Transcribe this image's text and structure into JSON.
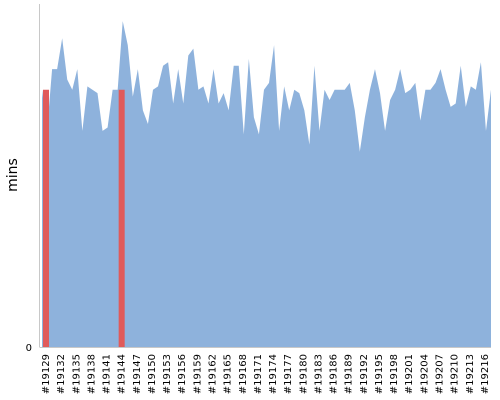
{
  "chart_data": {
    "type": "area",
    "ylabel": "mins",
    "x": [
      19129,
      19130,
      19131,
      19132,
      19133,
      19134,
      19135,
      19136,
      19137,
      19138,
      19139,
      19140,
      19141,
      19142,
      19143,
      19144,
      19145,
      19146,
      19147,
      19148,
      19149,
      19150,
      19151,
      19152,
      19153,
      19154,
      19155,
      19156,
      19157,
      19158,
      19159,
      19160,
      19161,
      19162,
      19163,
      19164,
      19165,
      19166,
      19167,
      19168,
      19169,
      19170,
      19171,
      19172,
      19173,
      19174,
      19175,
      19176,
      19177,
      19178,
      19179,
      19180,
      19181,
      19182,
      19183,
      19184,
      19185,
      19186,
      19187,
      19188,
      19189,
      19190,
      19191,
      19192,
      19193,
      19194,
      19195,
      19196,
      19197,
      19198,
      19199,
      19200,
      19201,
      19202,
      19203,
      19204,
      19205,
      19206,
      19207,
      19208,
      19209,
      19210,
      19211,
      19212,
      19213,
      19214,
      19215,
      19216,
      19217,
      19218
    ],
    "x_tick_labels": [
      "#19129",
      "#19132",
      "#19135",
      "#19138",
      "#19141",
      "#19144",
      "#19147",
      "#19150",
      "#19153",
      "#19156",
      "#19159",
      "#19162",
      "#19165",
      "#19168",
      "#19171",
      "#19174",
      "#19177",
      "#19180",
      "#19183",
      "#19186",
      "#19189",
      "#19192",
      "#19195",
      "#19198",
      "#19201",
      "#19204",
      "#19207",
      "#19210",
      "#19213",
      "#19216"
    ],
    "values": [
      75,
      63,
      81,
      81,
      90,
      78,
      75,
      81,
      63,
      76,
      75,
      74,
      63,
      64,
      75,
      75,
      95,
      88,
      73,
      81,
      69,
      65,
      75,
      76,
      82,
      83,
      71,
      81,
      71,
      85,
      87,
      75,
      76,
      71,
      81,
      71,
      74,
      69,
      82,
      82,
      62,
      84,
      67,
      62,
      75,
      77,
      88,
      63,
      76,
      69,
      75,
      74,
      69,
      59,
      82,
      63,
      75,
      72,
      75,
      75,
      75,
      77,
      69,
      57,
      67,
      75,
      81,
      74,
      63,
      72,
      75,
      81,
      74,
      75,
      77,
      66,
      75,
      75,
      77,
      81,
      75,
      70,
      71,
      82,
      70,
      76,
      75,
      83,
      63,
      75
    ],
    "y_tick_labels": [
      "0"
    ],
    "ylim": [
      0,
      100
    ],
    "highlight_x": [
      19129,
      19144
    ],
    "colors": {
      "area": "#8eb2dc",
      "highlight": "#e05a5a",
      "axis": "#c8c8c8"
    },
    "grid": false,
    "legend": "none"
  }
}
